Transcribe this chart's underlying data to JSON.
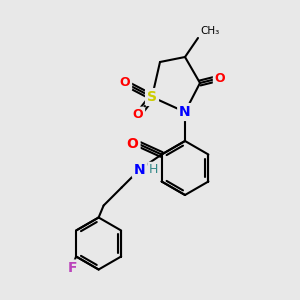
{
  "background_color": "#e8e8e8",
  "atom_colors": {
    "C": "#000000",
    "N": "#0000ff",
    "O": "#ff0000",
    "S": "#cccc00",
    "F": "#bb44bb",
    "H": "#338888"
  },
  "figsize": [
    3.0,
    3.0
  ],
  "dpi": 100
}
